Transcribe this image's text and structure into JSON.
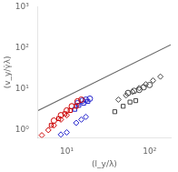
{
  "chart_data": {
    "type": "scatter",
    "xlabel": "(l_y/λ)",
    "ylabel": "(v_y/γ̇λ)",
    "log": true,
    "grid": false,
    "xlim": [
      4.5,
      180
    ],
    "ylim": [
      0.65,
      1000
    ],
    "xticks": [
      {
        "value": 10,
        "label": "10¹"
      },
      {
        "value": 100,
        "label": "10²"
      }
    ],
    "yticks": [
      {
        "value": 1,
        "label": "10⁰"
      },
      {
        "value": 10,
        "label": "10¹"
      },
      {
        "value": 100,
        "label": "10²"
      },
      {
        "value": 1000,
        "label": "10³"
      }
    ],
    "series": [
      {
        "color": "#cc0000",
        "marker": "circle",
        "values": [
          [
            7.0,
            1.7
          ],
          [
            8.5,
            2.3
          ],
          [
            10.0,
            3.0
          ],
          [
            11.5,
            3.8
          ],
          [
            13.5,
            5.0
          ],
          [
            15.0,
            5.5
          ]
        ]
      },
      {
        "color": "#cc0000",
        "marker": "square",
        "values": [
          [
            6.5,
            1.3
          ],
          [
            8.0,
            1.9
          ],
          [
            9.5,
            2.5
          ],
          [
            11.0,
            3.0
          ],
          [
            13.0,
            3.8
          ]
        ]
      },
      {
        "color": "#cc0000",
        "marker": "diamond",
        "values": [
          [
            5.0,
            0.75
          ],
          [
            6.0,
            1.0
          ],
          [
            7.0,
            1.3
          ],
          [
            8.5,
            1.8
          ],
          [
            10.0,
            2.3
          ]
        ]
      },
      {
        "color": "#2222cc",
        "marker": "circle",
        "values": [
          [
            13.5,
            4.5
          ],
          [
            15.5,
            5.2
          ],
          [
            17.0,
            5.5
          ],
          [
            19.0,
            5.8
          ]
        ]
      },
      {
        "color": "#2222cc",
        "marker": "square",
        "values": [
          [
            12.5,
            3.2
          ],
          [
            14.0,
            4.0
          ],
          [
            16.0,
            4.5
          ],
          [
            18.0,
            5.0
          ]
        ]
      },
      {
        "color": "#2222cc",
        "marker": "diamond",
        "values": [
          [
            8.5,
            0.78
          ],
          [
            10.0,
            0.88
          ],
          [
            13.0,
            1.5
          ],
          [
            15.0,
            1.8
          ],
          [
            17.0,
            2.1
          ]
        ]
      },
      {
        "color": "#444444",
        "marker": "circle",
        "values": [
          [
            55,
            8.0
          ],
          [
            65,
            9.0
          ],
          [
            75,
            9.5
          ],
          [
            85,
            11.0
          ],
          [
            100,
            12.5
          ]
        ]
      },
      {
        "color": "#444444",
        "marker": "square",
        "values": [
          [
            38,
            2.8
          ],
          [
            48,
            3.8
          ],
          [
            58,
            4.8
          ],
          [
            68,
            5.2
          ]
        ]
      },
      {
        "color": "#444444",
        "marker": "diamond",
        "values": [
          [
            42,
            5.5
          ],
          [
            52,
            7.0
          ],
          [
            62,
            8.5
          ],
          [
            75,
            10.5
          ],
          [
            90,
            13.0
          ],
          [
            110,
            16.0
          ],
          [
            135,
            20.0
          ]
        ]
      },
      {
        "type": "line",
        "color": "#666666",
        "values": [
          [
            4.5,
            2.97312
          ],
          [
            180,
            118.92482
          ]
        ]
      }
    ]
  }
}
